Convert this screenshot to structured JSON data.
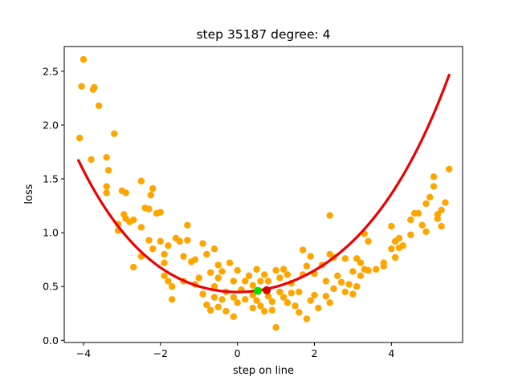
{
  "chart_data": {
    "type": "scatter",
    "title": "step 35187   degree: 4",
    "xlabel": "step on line",
    "ylabel": "loss",
    "xlim": [
      -4.5,
      5.85
    ],
    "ylim": [
      -0.02,
      2.73
    ],
    "x_ticks": [
      -4,
      -2,
      0,
      2,
      4
    ],
    "x_tick_labels": [
      "−4",
      "−2",
      "0",
      "2",
      "4"
    ],
    "y_ticks": [
      0.0,
      0.5,
      1.0,
      1.5,
      2.0,
      2.5
    ],
    "y_tick_labels": [
      "0.0",
      "0.5",
      "1.0",
      "1.5",
      "2.0",
      "2.5"
    ],
    "grid": false,
    "colors": {
      "points": "#ffa500",
      "fit_line": "#ee0000",
      "green_marker": "#00e000",
      "red_marker": "#dd0000"
    },
    "series": [
      {
        "kind": "scatter",
        "points": [
          [
            -4.1,
            1.88
          ],
          [
            -4.0,
            2.61
          ],
          [
            -4.05,
            2.36
          ],
          [
            -3.75,
            2.33
          ],
          [
            -3.72,
            2.35
          ],
          [
            -3.6,
            2.18
          ],
          [
            -3.8,
            1.68
          ],
          [
            -3.4,
            1.7
          ],
          [
            -3.35,
            1.58
          ],
          [
            -3.2,
            1.92
          ],
          [
            -3.4,
            1.43
          ],
          [
            -3.4,
            1.37
          ],
          [
            -3.0,
            1.39
          ],
          [
            -2.9,
            1.37
          ],
          [
            -3.1,
            1.08
          ],
          [
            -3.1,
            1.02
          ],
          [
            -2.95,
            1.17
          ],
          [
            -2.9,
            1.13
          ],
          [
            -2.8,
            1.1
          ],
          [
            -2.7,
            1.12
          ],
          [
            -2.5,
            1.48
          ],
          [
            -2.2,
            1.41
          ],
          [
            -2.25,
            1.35
          ],
          [
            -2.4,
            1.23
          ],
          [
            -2.3,
            1.22
          ],
          [
            -2.0,
            1.19
          ],
          [
            -2.1,
            1.18
          ],
          [
            -2.5,
            1.05
          ],
          [
            -2.3,
            0.93
          ],
          [
            -2.0,
            0.92
          ],
          [
            -1.8,
            0.88
          ],
          [
            -2.2,
            0.85
          ],
          [
            -2.5,
            0.78
          ],
          [
            -2.7,
            0.68
          ],
          [
            -1.9,
            0.8
          ],
          [
            -1.6,
            0.95
          ],
          [
            -1.5,
            0.92
          ],
          [
            -1.3,
            0.93
          ],
          [
            -1.3,
            1.07
          ],
          [
            -1.9,
            0.72
          ],
          [
            -1.9,
            0.6
          ],
          [
            -1.8,
            0.55
          ],
          [
            -1.7,
            0.5
          ],
          [
            -1.7,
            0.38
          ],
          [
            -1.4,
            0.78
          ],
          [
            -1.2,
            0.73
          ],
          [
            -1.1,
            0.75
          ],
          [
            -1.0,
            0.58
          ],
          [
            -1.1,
            0.52
          ],
          [
            -1.4,
            0.55
          ],
          [
            -0.9,
            0.9
          ],
          [
            -0.8,
            0.8
          ],
          [
            -0.6,
            0.85
          ],
          [
            -0.7,
            0.63
          ],
          [
            -0.5,
            0.7
          ],
          [
            -0.4,
            0.64
          ],
          [
            -0.5,
            0.58
          ],
          [
            -0.9,
            0.43
          ],
          [
            -0.8,
            0.33
          ],
          [
            -0.7,
            0.28
          ],
          [
            -0.6,
            0.5
          ],
          [
            -0.3,
            0.45
          ],
          [
            -0.4,
            0.38
          ],
          [
            -0.6,
            0.4
          ],
          [
            -0.5,
            0.31
          ],
          [
            -0.2,
            0.72
          ],
          [
            -0.1,
            0.55
          ],
          [
            0.0,
            0.65
          ],
          [
            0.1,
            0.47
          ],
          [
            0.2,
            0.55
          ],
          [
            -0.1,
            0.4
          ],
          [
            0.0,
            0.35
          ],
          [
            0.2,
            0.38
          ],
          [
            -0.3,
            0.27
          ],
          [
            -0.1,
            0.22
          ],
          [
            0.3,
            0.6
          ],
          [
            0.4,
            0.51
          ],
          [
            0.5,
            0.66
          ],
          [
            0.6,
            0.55
          ],
          [
            0.7,
            0.61
          ],
          [
            0.4,
            0.42
          ],
          [
            0.5,
            0.37
          ],
          [
            0.6,
            0.32
          ],
          [
            0.8,
            0.41
          ],
          [
            0.9,
            0.36
          ],
          [
            0.4,
            0.3
          ],
          [
            0.7,
            0.27
          ],
          [
            0.9,
            0.28
          ],
          [
            1.0,
            0.12
          ],
          [
            0.8,
            0.55
          ],
          [
            1.0,
            0.65
          ],
          [
            1.1,
            0.58
          ],
          [
            1.2,
            0.66
          ],
          [
            1.3,
            0.61
          ],
          [
            1.4,
            0.53
          ],
          [
            1.1,
            0.45
          ],
          [
            1.2,
            0.4
          ],
          [
            1.3,
            0.35
          ],
          [
            1.4,
            0.44
          ],
          [
            1.5,
            0.32
          ],
          [
            1.6,
            0.45
          ],
          [
            1.7,
            0.61
          ],
          [
            1.8,
            0.69
          ],
          [
            1.7,
            0.84
          ],
          [
            1.9,
            0.78
          ],
          [
            1.6,
            0.26
          ],
          [
            1.8,
            0.2
          ],
          [
            1.9,
            0.37
          ],
          [
            2.0,
            0.42
          ],
          [
            2.1,
            0.3
          ],
          [
            2.0,
            0.62
          ],
          [
            2.2,
            0.7
          ],
          [
            2.3,
            0.55
          ],
          [
            2.4,
            0.8
          ],
          [
            2.5,
            0.77
          ],
          [
            2.3,
            0.41
          ],
          [
            2.4,
            0.35
          ],
          [
            2.5,
            0.48
          ],
          [
            2.6,
            0.6
          ],
          [
            2.7,
            0.54
          ],
          [
            2.4,
            1.16
          ],
          [
            2.8,
            0.76
          ],
          [
            3.0,
            0.64
          ],
          [
            3.2,
            0.6
          ],
          [
            3.3,
            0.66
          ],
          [
            2.8,
            0.45
          ],
          [
            2.9,
            0.52
          ],
          [
            3.0,
            0.43
          ],
          [
            3.2,
            0.72
          ],
          [
            3.4,
            0.65
          ],
          [
            3.1,
            0.76
          ],
          [
            3.1,
            0.5
          ],
          [
            3.3,
            0.99
          ],
          [
            3.4,
            0.92
          ],
          [
            3.6,
            0.66
          ],
          [
            3.8,
            0.72
          ],
          [
            3.8,
            0.69
          ],
          [
            4.0,
            0.85
          ],
          [
            4.1,
            0.92
          ],
          [
            4.2,
            0.95
          ],
          [
            4.0,
            1.06
          ],
          [
            4.1,
            0.77
          ],
          [
            4.2,
            0.86
          ],
          [
            4.3,
            0.88
          ],
          [
            4.5,
            0.98
          ],
          [
            4.5,
            1.12
          ],
          [
            4.6,
            1.18
          ],
          [
            4.7,
            1.18
          ],
          [
            4.8,
            1.07
          ],
          [
            4.9,
            1.01
          ],
          [
            4.9,
            1.27
          ],
          [
            5.0,
            1.33
          ],
          [
            5.1,
            1.43
          ],
          [
            5.1,
            1.52
          ],
          [
            5.2,
            1.17
          ],
          [
            5.2,
            1.13
          ],
          [
            5.3,
            1.06
          ],
          [
            5.5,
            1.59
          ],
          [
            5.4,
            1.28
          ],
          [
            5.3,
            1.21
          ]
        ]
      },
      {
        "kind": "line",
        "coefficients": [
          0.449,
          0.0,
          0.05,
          -0.0017,
          0.00086
        ],
        "x_range": [
          -4.13,
          5.5
        ]
      }
    ],
    "markers": [
      {
        "name": "green",
        "x": 0.53,
        "y": 0.46
      },
      {
        "name": "red",
        "x": 0.76,
        "y": 0.465
      }
    ]
  }
}
